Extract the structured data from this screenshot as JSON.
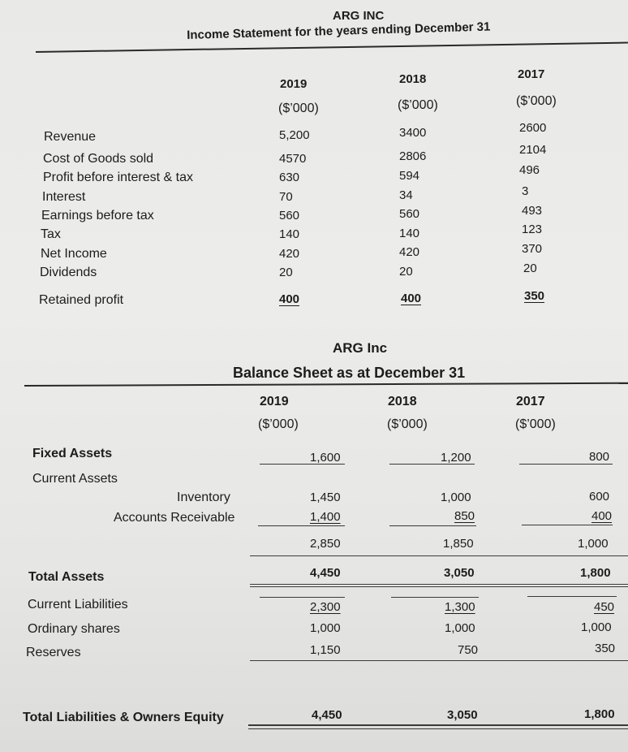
{
  "income_statement": {
    "company": "ARG INC",
    "title": "Income Statement for the years ending December 31",
    "columns": [
      {
        "year": "2019",
        "unit": "($’000)"
      },
      {
        "year": "2018",
        "unit": "($’000)"
      },
      {
        "year": "2017",
        "unit": "($’000)"
      }
    ],
    "rows": [
      {
        "label": "Revenue",
        "values": [
          "5,200",
          "3400",
          "2600"
        ]
      },
      {
        "label": "Cost of Goods sold",
        "values": [
          "4570",
          "2806",
          "2104"
        ]
      },
      {
        "label": "Profit before interest & tax",
        "values": [
          "630",
          "594",
          "496"
        ]
      },
      {
        "label": "Interest",
        "values": [
          "70",
          "34",
          "3"
        ]
      },
      {
        "label": "Earnings before tax",
        "values": [
          "560",
          "560",
          "493"
        ]
      },
      {
        "label": "Tax",
        "values": [
          "140",
          "140",
          "123"
        ]
      },
      {
        "label": "Net Income",
        "values": [
          "420",
          "420",
          "370"
        ]
      },
      {
        "label": "Dividends",
        "values": [
          "20",
          "20",
          "20"
        ]
      },
      {
        "label": "Retained profit",
        "values": [
          "400",
          "400",
          "350"
        ]
      }
    ]
  },
  "balance_sheet": {
    "company": "ARG Inc",
    "title": "Balance Sheet as at December 31",
    "columns": [
      {
        "year": "2019",
        "unit": "($’000)"
      },
      {
        "year": "2018",
        "unit": "($’000)"
      },
      {
        "year": "2017",
        "unit": "($’000)"
      }
    ],
    "fixed_assets": {
      "label": "Fixed Assets",
      "values": [
        "1,600",
        "1,200",
        "800"
      ]
    },
    "current_assets_label": "Current Assets",
    "inventory": {
      "label": "Inventory",
      "values": [
        "1,450",
        "1,000",
        "600"
      ]
    },
    "receivables": {
      "label": "Accounts Receivable",
      "values": [
        "1,400",
        "850",
        "400"
      ]
    },
    "current_assets_total": {
      "values": [
        "2,850",
        "1,850",
        "1,000"
      ]
    },
    "total_assets": {
      "label": "Total Assets",
      "values": [
        "4,450",
        "3,050",
        "1,800"
      ]
    },
    "current_liabilities": {
      "label": "Current Liabilities",
      "values": [
        "2,300",
        "1,300",
        "450"
      ]
    },
    "ordinary_shares": {
      "label": "Ordinary shares",
      "values": [
        "1,000",
        "1,000",
        "1,000"
      ]
    },
    "reserves": {
      "label": "Reserves",
      "values": [
        "1,150",
        "750",
        "350"
      ]
    },
    "total_liabilities_equity": {
      "label": "Total Liabilities & Owners Equity",
      "values": [
        "4,450",
        "3,050",
        "1,800"
      ]
    }
  }
}
